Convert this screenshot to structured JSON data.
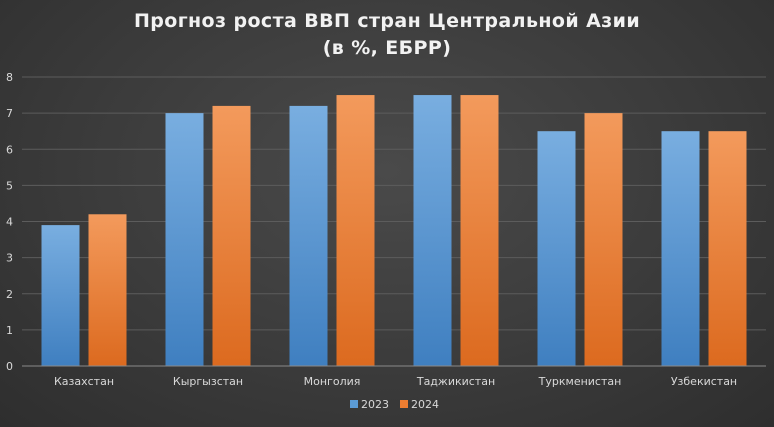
{
  "chart_data": {
    "type": "bar",
    "title_line1": "Прогноз роста ВВП стран Центральной Азии",
    "title_line2": "(в %, ЕБРР)",
    "categories": [
      "Казахстан",
      "Кыргызстан",
      "Монголия",
      "Таджикистан",
      "Туркменистан",
      "Узбекистан"
    ],
    "series": [
      {
        "name": "2023",
        "values": [
          3.9,
          7.0,
          7.2,
          7.5,
          6.5,
          6.5
        ],
        "color": "#5b9bd5"
      },
      {
        "name": "2024",
        "values": [
          4.2,
          7.2,
          7.5,
          7.5,
          7.0,
          6.5
        ],
        "color": "#ed7d31"
      }
    ],
    "ylim": [
      0,
      8
    ],
    "yticks": [
      0,
      1,
      2,
      3,
      4,
      5,
      6,
      7,
      8
    ],
    "grid": true,
    "legend_position": "bottom"
  }
}
